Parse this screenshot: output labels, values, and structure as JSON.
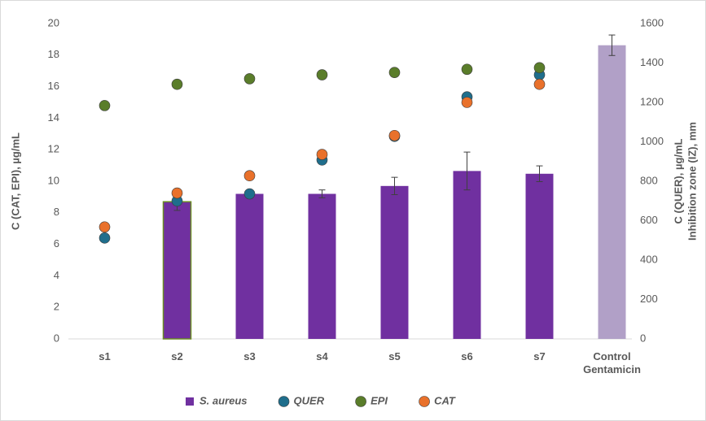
{
  "chart_data": {
    "type": "bar_scatter",
    "categories": [
      "s1",
      "s2",
      "s3",
      "s4",
      "s5",
      "s6",
      "s7",
      "Control Gentamicin"
    ],
    "ylabel": "C (CAT, EPI), µg/mL",
    "y2label": "C (QUER), µg/mL",
    "y2label2": "Inhibition zone (IZ), mm",
    "ylim": [
      0,
      20
    ],
    "yticks": [
      0,
      2,
      4,
      6,
      8,
      10,
      12,
      14,
      16,
      18,
      20
    ],
    "y2lim": [
      0,
      1600
    ],
    "y2ticks": [
      0,
      200,
      400,
      600,
      800,
      1000,
      1200,
      1400,
      1600
    ],
    "grid": false,
    "legend": "bottom",
    "series": [
      {
        "name": "S. aureus",
        "kind": "bar",
        "axis": "y2",
        "color": "#7030a0",
        "colors": [
          null,
          "#7030a0",
          "#7030a0",
          "#7030a0",
          "#7030a0",
          "#7030a0",
          "#7030a0",
          "#b1a0c7"
        ],
        "values": [
          null,
          696,
          736,
          736,
          776,
          852,
          838,
          1490
        ],
        "errors": [
          null,
          44,
          20,
          20,
          44,
          96,
          40,
          52
        ]
      },
      {
        "name": "QUER",
        "kind": "scatter",
        "axis": "y2",
        "color": "#1f6e8c",
        "values": [
          512,
          700,
          736,
          908,
          1028,
          1228,
          1340,
          null
        ]
      },
      {
        "name": "EPI",
        "kind": "scatter",
        "axis": "y",
        "color": "#5a7d2a",
        "values": [
          14.8,
          16.15,
          16.5,
          16.75,
          16.9,
          17.1,
          17.2,
          null
        ]
      },
      {
        "name": "CAT",
        "kind": "scatter",
        "axis": "y",
        "color": "#e9712b",
        "values": [
          7.1,
          9.25,
          10.35,
          11.7,
          12.9,
          15.0,
          16.15,
          null
        ]
      }
    ]
  }
}
